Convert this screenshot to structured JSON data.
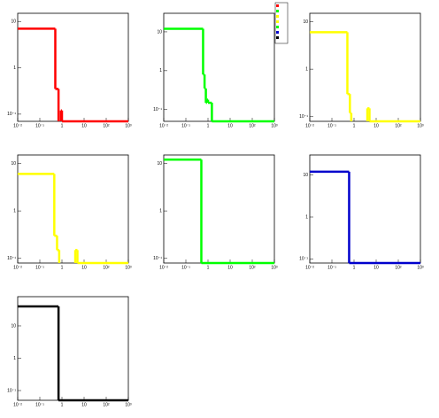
{
  "chart_data": [
    {
      "type": "histogram",
      "color": "#ff0000",
      "log_x": true,
      "log_y": true,
      "xlim": [
        0.01,
        1000
      ],
      "ylim": [
        0.07,
        15
      ],
      "xticks": [
        {
          "value": 0.01,
          "label": "10⁻²"
        },
        {
          "value": 0.1,
          "label": "10⁻¹"
        },
        1,
        10,
        {
          "value": 100,
          "label": "10²"
        },
        {
          "value": 1000,
          "label": "10³"
        }
      ],
      "yticks": [
        {
          "value": 0.1,
          "label": "10⁻¹"
        },
        1,
        10
      ],
      "bins": [
        0.01,
        0.5,
        0.7,
        0.9,
        1.0
      ],
      "values": [
        7,
        0.35,
        null,
        0.12
      ]
    },
    {
      "type": "histogram",
      "color": "#00ff00",
      "log_x": true,
      "log_y": true,
      "xlim": [
        0.01,
        1000
      ],
      "ylim": [
        0.05,
        30
      ],
      "xticks": [
        {
          "value": 0.01,
          "label": "10⁻²"
        },
        {
          "value": 0.1,
          "label": "10⁻¹"
        },
        1,
        10,
        {
          "value": 100,
          "label": "10²"
        },
        {
          "value": 1000,
          "label": "10³"
        }
      ],
      "yticks": [
        {
          "value": 0.1,
          "label": "10⁻¹"
        },
        1,
        10
      ],
      "bins": [
        0.01,
        0.6,
        0.7,
        0.8,
        0.9,
        1.0,
        1.5
      ],
      "values": [
        12,
        0.8,
        0.35,
        0.15,
        0.18,
        0.15
      ]
    },
    {
      "type": "histogram",
      "color": "#ffff00",
      "log_x": true,
      "log_y": true,
      "xlim": [
        0.01,
        1000
      ],
      "ylim": [
        0.08,
        15
      ],
      "xticks": [
        {
          "value": 0.01,
          "label": "10⁻²"
        },
        {
          "value": 0.1,
          "label": "10⁻¹"
        },
        1,
        10,
        {
          "value": 100,
          "label": "10²"
        },
        {
          "value": 1000,
          "label": "10³"
        }
      ],
      "yticks": [
        {
          "value": 0.1,
          "label": "10⁻¹"
        },
        1,
        10
      ],
      "bins": [
        0.01,
        0.5,
        0.65,
        0.75,
        4,
        5
      ],
      "values": [
        6,
        0.3,
        0.12,
        null,
        0.15
      ]
    },
    {
      "type": "histogram",
      "color": "#ffff00",
      "log_x": true,
      "log_y": true,
      "xlim": [
        0.01,
        1000
      ],
      "ylim": [
        0.08,
        15
      ],
      "xticks": [
        {
          "value": 0.01,
          "label": "10⁻²"
        },
        {
          "value": 0.1,
          "label": "10⁻¹"
        },
        1,
        10,
        {
          "value": 100,
          "label": "10²"
        },
        {
          "value": 1000,
          "label": "10³"
        }
      ],
      "yticks": [
        {
          "value": 0.1,
          "label": "10⁻¹"
        },
        1,
        10
      ],
      "bins": [
        0.01,
        0.45,
        0.6,
        0.75,
        4,
        5
      ],
      "values": [
        6,
        0.3,
        0.15,
        null,
        0.15
      ]
    },
    {
      "type": "histogram",
      "color": "#00ff00",
      "log_x": true,
      "log_y": true,
      "xlim": [
        0.01,
        1000
      ],
      "ylim": [
        0.08,
        15
      ],
      "xticks": [
        {
          "value": 0.01,
          "label": "10⁻²"
        },
        {
          "value": 0.1,
          "label": "10⁻¹"
        },
        1,
        10,
        {
          "value": 100,
          "label": "10²"
        },
        {
          "value": 1000,
          "label": "10³"
        }
      ],
      "yticks": [
        {
          "value": 0.1,
          "label": "10⁻¹"
        },
        1,
        10
      ],
      "bins": [
        0.01,
        0.5
      ],
      "values": [
        12
      ]
    },
    {
      "type": "histogram",
      "color": "#0000cc",
      "log_x": true,
      "log_y": true,
      "xlim": [
        0.01,
        1000
      ],
      "ylim": [
        0.08,
        30
      ],
      "xticks": [
        {
          "value": 0.01,
          "label": "10⁻²"
        },
        {
          "value": 0.1,
          "label": "10⁻¹"
        },
        1,
        10,
        {
          "value": 100,
          "label": "10²"
        },
        {
          "value": 1000,
          "label": "10³"
        }
      ],
      "yticks": [
        {
          "value": 0.1,
          "label": "10⁻¹"
        },
        1,
        10
      ],
      "bins": [
        0.01,
        0.6
      ],
      "values": [
        12
      ]
    },
    {
      "type": "histogram",
      "color": "#000000",
      "log_x": true,
      "log_y": true,
      "xlim": [
        0.01,
        1000
      ],
      "ylim": [
        0.05,
        80
      ],
      "xticks": [
        {
          "value": 0.01,
          "label": "10⁻²"
        },
        {
          "value": 0.1,
          "label": "10⁻¹"
        },
        1,
        10,
        {
          "value": 100,
          "label": "10²"
        },
        {
          "value": 1000,
          "label": "10³"
        }
      ],
      "yticks": [
        {
          "value": 0.1,
          "label": "10⁻¹"
        },
        1,
        10
      ],
      "bins": [
        0.01,
        0.7
      ],
      "values": [
        40
      ]
    }
  ]
}
